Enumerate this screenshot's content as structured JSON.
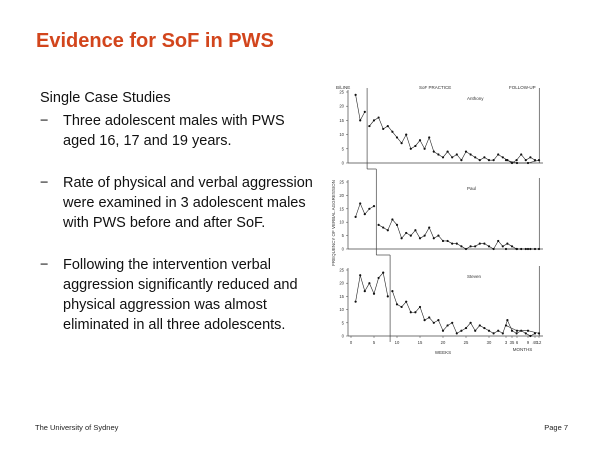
{
  "slide": {
    "title": "Evidence for SoF in PWS",
    "subheading": "Single Case Studies",
    "bullets": [
      "Three adolescent males with PWS aged 16, 17 and 19 years.",
      "Rate of physical and verbal aggression were examined in 3 adolescent males with PWS before and after SoF.",
      "Following the intervention verbal aggression significantly reduced and physical aggression was almost eliminated in all three adolescents."
    ],
    "bullet_marker": "−",
    "footer_left": "The University of Sydney",
    "footer_right": "Page 7"
  },
  "chart_data": {
    "type": "line",
    "ylabel": "FREQUENCY OF VERBAL AGGRESSION",
    "xlabel_weeks": "WEEKS",
    "xlabel_months": "MONTHS",
    "phase_labels": [
      "B/LINE",
      "SoF PRACTICE",
      "FOLLOW-UP"
    ],
    "x_ticks_weeks": [
      0,
      5,
      10,
      15,
      20,
      25,
      30,
      35,
      40
    ],
    "x_ticks_months": [
      3,
      6,
      9,
      12
    ],
    "y_ticks": [
      0,
      5,
      10,
      15,
      20,
      25
    ],
    "ylim": [
      0,
      25
    ],
    "panels": [
      {
        "name": "Anthony",
        "baseline_end_week": 3,
        "weeks": [
          1,
          2,
          3,
          4,
          5,
          6,
          7,
          8,
          9,
          10,
          11,
          12,
          13,
          14,
          15,
          16,
          17,
          18,
          19,
          20,
          21,
          22,
          23,
          24,
          25,
          26,
          27,
          28,
          29,
          30,
          31,
          32,
          33,
          34,
          35,
          36,
          37,
          38,
          39,
          40
        ],
        "values": [
          24,
          15,
          18,
          13,
          15,
          16,
          12,
          13,
          11,
          9,
          7,
          10,
          5,
          6,
          8,
          5,
          9,
          4,
          3,
          2,
          4,
          2,
          3,
          1,
          4,
          3,
          2,
          1,
          2,
          1,
          1,
          3,
          2,
          1,
          0,
          1,
          3,
          1,
          2,
          1
        ],
        "followup_months": [
          3,
          6,
          9,
          12
        ],
        "followup_values": [
          1,
          0,
          0,
          1
        ]
      },
      {
        "name": "Paul",
        "baseline_end_week": 5,
        "weeks": [
          1,
          2,
          3,
          4,
          5,
          6,
          7,
          8,
          9,
          10,
          11,
          12,
          13,
          14,
          15,
          16,
          17,
          18,
          19,
          20,
          21,
          22,
          23,
          24,
          25,
          26,
          27,
          28,
          29,
          30,
          31,
          32,
          33,
          34,
          35,
          36,
          37,
          38,
          39,
          40
        ],
        "values": [
          12,
          17,
          13,
          15,
          16,
          9,
          8,
          7,
          11,
          9,
          4,
          6,
          5,
          7,
          4,
          5,
          8,
          4,
          5,
          3,
          3,
          2,
          2,
          1,
          0,
          1,
          1,
          2,
          2,
          1,
          0,
          3,
          1,
          2,
          1,
          0,
          0,
          0,
          0,
          0
        ],
        "followup_months": [
          3,
          6,
          9,
          12
        ],
        "followup_values": [
          0,
          0,
          0,
          0
        ]
      },
      {
        "name": "Steven",
        "baseline_end_week": 8,
        "weeks": [
          1,
          2,
          3,
          4,
          5,
          6,
          7,
          8,
          9,
          10,
          11,
          12,
          13,
          14,
          15,
          16,
          17,
          18,
          19,
          20,
          21,
          22,
          23,
          24,
          25,
          26,
          27,
          28,
          29,
          30,
          31,
          32,
          33,
          34,
          35,
          36,
          37,
          38,
          39,
          40
        ],
        "values": [
          13,
          23,
          17,
          20,
          16,
          22,
          24,
          15,
          17,
          12,
          11,
          13,
          9,
          9,
          11,
          6,
          7,
          5,
          6,
          2,
          4,
          5,
          1,
          2,
          3,
          5,
          2,
          4,
          3,
          2,
          1,
          2,
          1,
          6,
          2,
          1,
          2,
          1,
          0,
          1
        ],
        "followup_months": [
          3,
          6,
          9,
          12
        ],
        "followup_values": [
          4,
          2,
          2,
          1
        ]
      }
    ]
  }
}
